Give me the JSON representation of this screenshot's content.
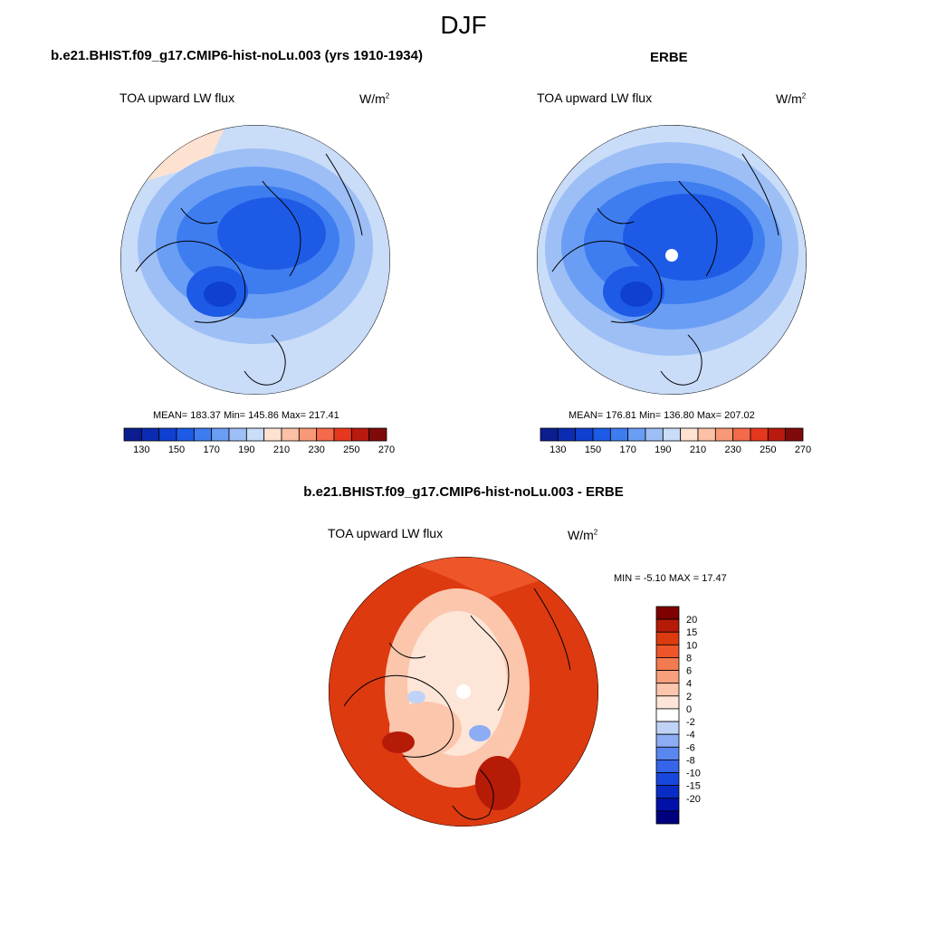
{
  "season": "DJF",
  "colors": {
    "absolute": [
      "#0b1d8f",
      "#0a2cb0",
      "#0f40cf",
      "#1d5be6",
      "#3d7df0",
      "#6a9ef4",
      "#9dbff6",
      "#c9dcf8",
      "#fde2d2",
      "#fbc0a6",
      "#f89878",
      "#f46a4a",
      "#e5381f",
      "#b81a10",
      "#7f0a0a"
    ],
    "difference": [
      "#00007f",
      "#0010a8",
      "#0a2cc6",
      "#1747dd",
      "#3465ea",
      "#5a86f0",
      "#8cacf4",
      "#c0d3f7",
      "#ffffff",
      "#fde6d8",
      "#fbc6ac",
      "#f8a07c",
      "#f47a50",
      "#ee5528",
      "#dd3a10",
      "#b61b08",
      "#7e0000"
    ]
  },
  "top_left": {
    "title": "b.e21.BHIST.f09_g17.CMIP6-hist-noLu.003 (yrs 1910-1934)",
    "variable": "TOA upward LW flux",
    "units_base": "W/m",
    "units_exp": "2",
    "stats": "MEAN= 183.37  Min= 145.86  Max= 217.41"
  },
  "top_right": {
    "title": "ERBE",
    "variable": "TOA upward LW flux",
    "units_base": "W/m",
    "units_exp": "2",
    "stats": "MEAN= 176.81  Min= 136.80  Max= 207.02"
  },
  "bottom": {
    "title": "b.e21.BHIST.f09_g17.CMIP6-hist-noLu.003 - ERBE",
    "variable": "TOA upward LW flux",
    "units_base": "W/m",
    "units_exp": "2",
    "stats": "MIN =  -5.10 MAX =  17.47"
  },
  "colorbar_abs_labels": [
    "130",
    "150",
    "170",
    "190",
    "210",
    "230",
    "250",
    "270"
  ],
  "colorbar_diff_labels": [
    "20",
    "15",
    "10",
    "8",
    "6",
    "4",
    "2",
    "0",
    "-2",
    "-4",
    "-6",
    "-8",
    "-10",
    "-15",
    "-20"
  ]
}
